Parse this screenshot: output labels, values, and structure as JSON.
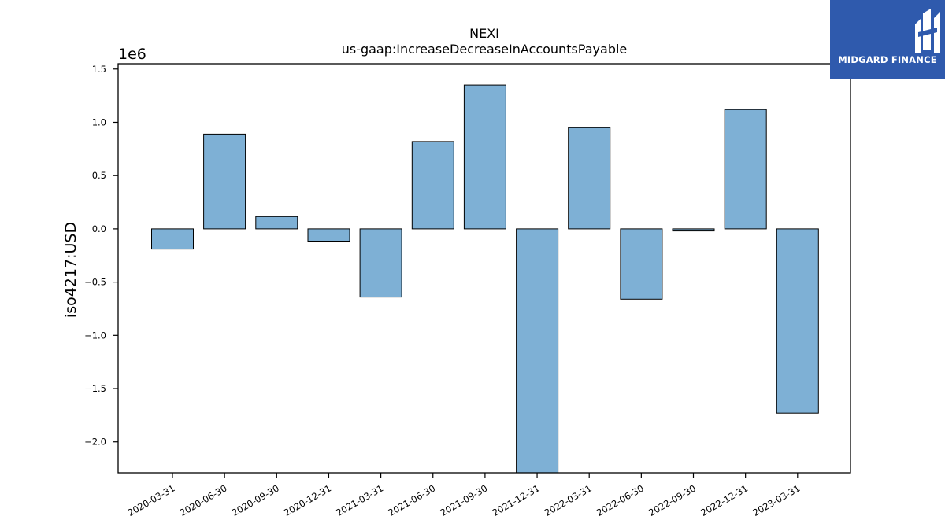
{
  "chart_data": {
    "type": "bar",
    "title": "NEXI",
    "subtitle": "us-gaap:IncreaseDecreaseInAccountsPayable",
    "xlabel": "",
    "ylabel": "iso4217:USD",
    "offset_label": "1e6",
    "categories": [
      "2020-03-31",
      "2020-06-30",
      "2020-09-30",
      "2020-12-31",
      "2021-03-31",
      "2021-06-30",
      "2021-09-30",
      "2021-12-31",
      "2022-03-31",
      "2022-06-30",
      "2022-09-30",
      "2022-12-31",
      "2023-03-31"
    ],
    "values": [
      -190000,
      890000,
      115000,
      -115000,
      -640000,
      820000,
      1350000,
      -2290000,
      950000,
      -660000,
      -20000,
      1120000,
      -1730000
    ],
    "ylim": [
      -2.29,
      1.55
    ],
    "yticks": [
      1.5,
      1.0,
      0.5,
      0.0,
      -0.5,
      -1.0,
      -1.5,
      -2.0
    ],
    "ytick_labels": [
      "1.5",
      "1.0",
      "0.5",
      "0.0",
      "−0.5",
      "−1.0",
      "−1.5",
      "−2.0"
    ],
    "grid": false,
    "bar_color": "#7eb0d5",
    "bar_edge_color": "#000000"
  },
  "logo": {
    "text": "MIDGARD FINANCE",
    "background": "#2f5aad"
  }
}
